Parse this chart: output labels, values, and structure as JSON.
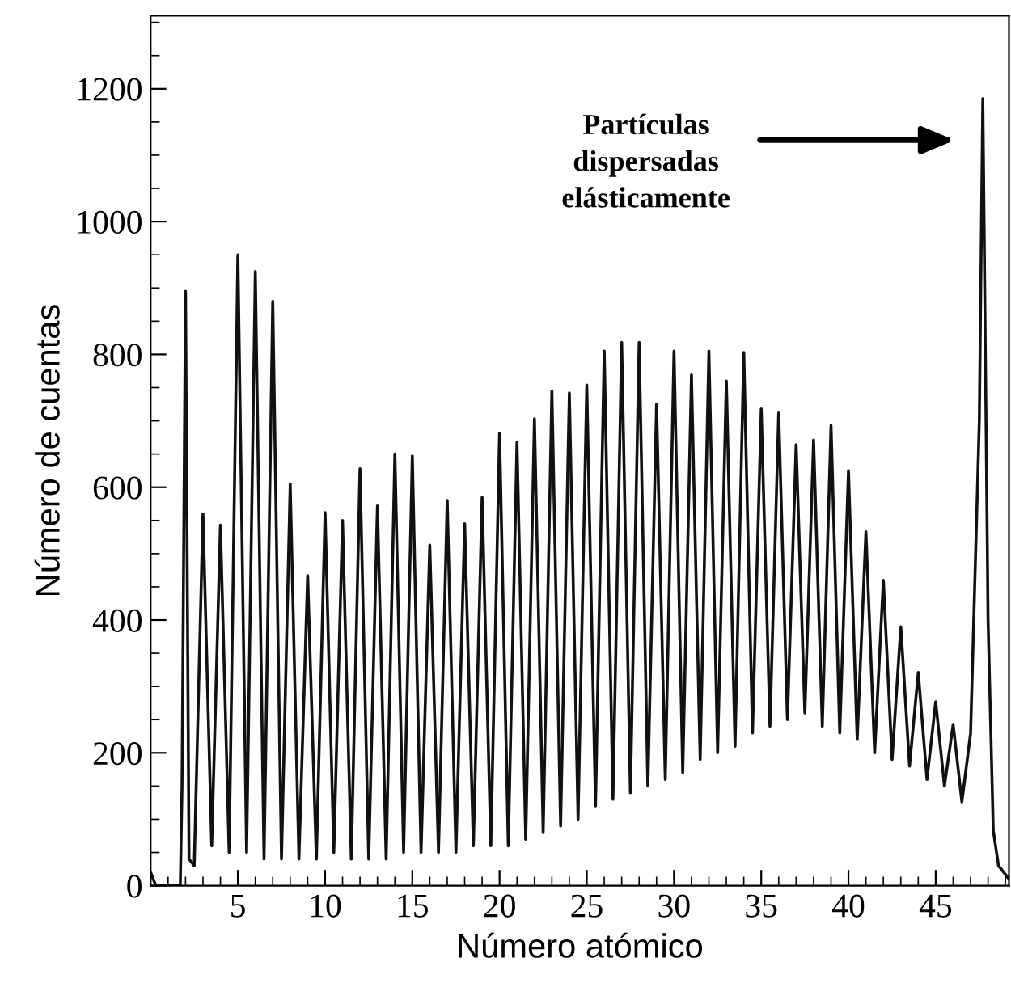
{
  "chart_data": {
    "type": "line",
    "xlabel": "Número atómico",
    "ylabel": "Número de cuentas",
    "x": [
      0,
      0.3,
      1.7,
      1.8,
      2,
      2.2,
      2.5,
      3,
      3.5,
      4,
      4.5,
      5,
      5.5,
      6,
      6.5,
      7,
      7.5,
      8,
      8.5,
      9,
      9.5,
      10,
      10.5,
      11,
      11.5,
      12,
      12.5,
      13,
      13.5,
      14,
      14.5,
      15,
      15.5,
      16,
      16.5,
      17,
      17.5,
      18,
      18.5,
      19,
      19.5,
      20,
      20.5,
      21,
      21.5,
      22,
      22.5,
      23,
      23.5,
      24,
      24.5,
      25,
      25.5,
      26,
      26.5,
      27,
      27.5,
      28,
      28.5,
      29,
      29.5,
      30,
      30.5,
      31,
      31.5,
      32,
      32.5,
      33,
      33.5,
      34,
      34.5,
      35,
      35.5,
      36,
      36.5,
      37,
      37.5,
      38,
      38.5,
      39,
      39.5,
      40,
      40.5,
      41,
      41.5,
      42,
      42.5,
      43,
      43.5,
      44,
      44.5,
      45,
      45.5,
      46,
      46.5,
      47,
      47.5,
      47.7,
      48,
      48.3,
      48.6,
      49.2
    ],
    "series": [
      {
        "color": "#111111",
        "values": [
          20,
          0,
          0,
          150,
          895,
          40,
          30,
          560,
          60,
          543,
          50,
          950,
          50,
          925,
          40,
          880,
          40,
          605,
          40,
          467,
          40,
          562,
          50,
          550,
          40,
          628,
          40,
          572,
          40,
          650,
          50,
          647,
          50,
          513,
          50,
          580,
          50,
          545,
          60,
          585,
          60,
          681,
          60,
          668,
          70,
          703,
          80,
          745,
          90,
          742,
          100,
          754,
          120,
          805,
          130,
          818,
          140,
          818,
          150,
          725,
          160,
          805,
          170,
          769,
          190,
          805,
          200,
          760,
          210,
          803,
          230,
          718,
          240,
          712,
          250,
          664,
          260,
          671,
          240,
          693,
          230,
          625,
          220,
          533,
          200,
          460,
          190,
          390,
          180,
          321,
          160,
          277,
          150,
          243,
          126,
          230,
          700,
          1185,
          400,
          83,
          30,
          10
        ]
      }
    ],
    "xlim": [
      0,
      49.2
    ],
    "xticks": [
      5,
      10,
      15,
      20,
      25,
      30,
      35,
      40,
      45
    ],
    "ylim": [
      0,
      1310
    ],
    "yticks": [
      0,
      200,
      400,
      600,
      800,
      1000,
      1200
    ],
    "annotations": [
      "Partículas\ndispersadas\nelásticamente"
    ],
    "grid": false,
    "legend": false,
    "marker": "none",
    "line_style": "solid"
  }
}
